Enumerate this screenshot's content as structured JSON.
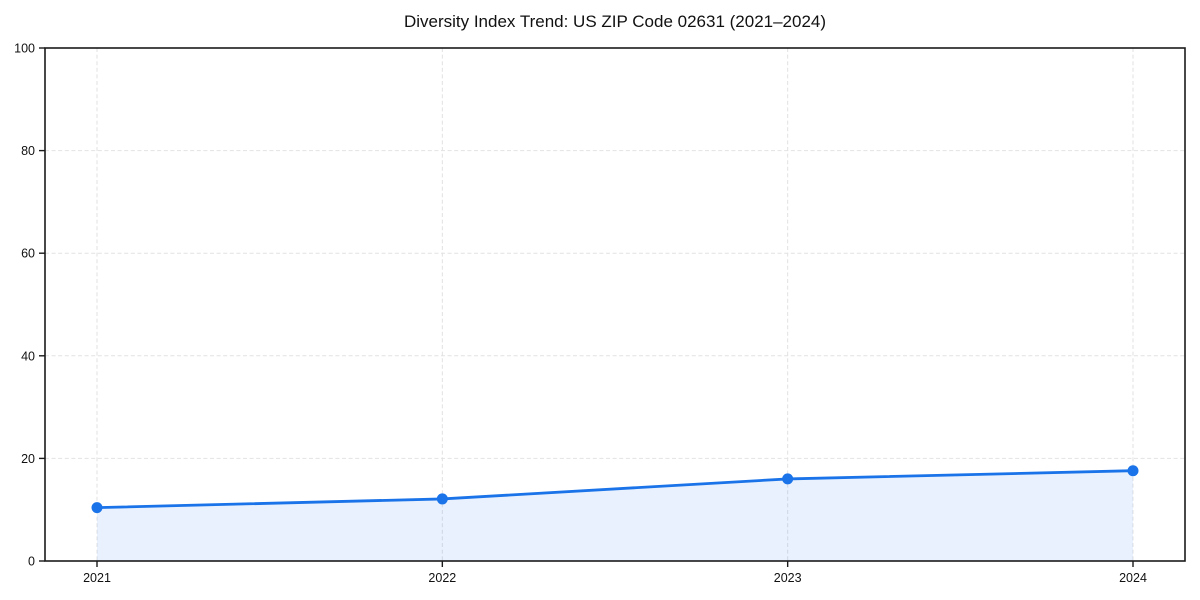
{
  "chart_data": {
    "type": "area",
    "title": "Diversity Index Trend: US ZIP Code 02631 (2021–2024)",
    "categories": [
      "2021",
      "2022",
      "2023",
      "2024"
    ],
    "series": [
      {
        "name": "Diversity Index",
        "values": [
          10.4,
          12.1,
          16.0,
          17.6
        ]
      }
    ],
    "xlabel": "",
    "ylabel": "",
    "ylim": [
      0,
      100
    ],
    "yticks": [
      0,
      20,
      40,
      60,
      80,
      100
    ],
    "grid": "dashed-both-axes",
    "legend_position": "none",
    "frame": "full-box",
    "colors": {
      "line": "#1a73e8",
      "marker": "#1a73e8",
      "fill": "rgba(26,115,232,0.10)",
      "grid": "#e2e2e2",
      "axis": "#1a1a1a",
      "text": "#111111",
      "background": "#ffffff"
    }
  }
}
